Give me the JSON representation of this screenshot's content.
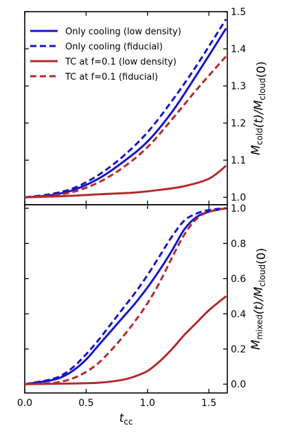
{
  "chart_data": [
    {
      "type": "line",
      "xlabel": "t_cc",
      "ylabel": "M_cold(t)/M_cloud(0)",
      "xlim": [
        0.0,
        1.65
      ],
      "ylim": [
        0.98,
        1.5
      ],
      "y_axis_side": "right",
      "x_ticks": [
        "0.0",
        "0.5",
        "1.0",
        "1.5"
      ],
      "y_ticks": [
        "1.0",
        "1.1",
        "1.2",
        "1.3",
        "1.4",
        "1.5"
      ],
      "legend": {
        "placement": "top-left"
      },
      "series": [
        {
          "name": "Only cooling (low density)",
          "color": "#1515c8",
          "dash": "solid",
          "x": [
            0.0,
            0.2,
            0.4,
            0.6,
            0.8,
            1.0,
            1.2,
            1.4,
            1.64
          ],
          "y": [
            1.0,
            1.005,
            1.02,
            1.05,
            1.095,
            1.15,
            1.23,
            1.33,
            1.455
          ]
        },
        {
          "name": "Only cooling (fiducial)",
          "color": "#1515c8",
          "dash": "dashed",
          "x": [
            0.0,
            0.2,
            0.4,
            0.6,
            0.8,
            1.0,
            1.2,
            1.4,
            1.64
          ],
          "y": [
            1.0,
            1.008,
            1.025,
            1.06,
            1.11,
            1.175,
            1.26,
            1.355,
            1.48
          ]
        },
        {
          "name": "TC at f=0.1 (low density)",
          "color": "#b52a2a",
          "dash": "solid",
          "x": [
            0.0,
            0.3,
            0.6,
            0.9,
            1.1,
            1.3,
            1.5,
            1.64
          ],
          "y": [
            1.0,
            1.003,
            1.008,
            1.013,
            1.02,
            1.03,
            1.05,
            1.085
          ]
        },
        {
          "name": "TC at f=0.1 (fiducial)",
          "color": "#b52a2a",
          "dash": "dashed",
          "x": [
            0.0,
            0.2,
            0.4,
            0.6,
            0.8,
            1.0,
            1.2,
            1.4,
            1.64
          ],
          "y": [
            1.0,
            1.004,
            1.015,
            1.04,
            1.08,
            1.135,
            1.21,
            1.29,
            1.38
          ]
        }
      ]
    },
    {
      "type": "line",
      "xlabel": "t_cc",
      "ylabel": "M_mixed(t)/M_cloud(0)",
      "xlim": [
        0.0,
        1.65
      ],
      "ylim": [
        -0.05,
        1.02
      ],
      "y_axis_side": "right",
      "x_ticks": [
        "0.0",
        "0.5",
        "1.0",
        "1.5"
      ],
      "y_ticks": [
        "0.0",
        "0.2",
        "0.4",
        "0.6",
        "0.8",
        "1.0"
      ],
      "series": [
        {
          "name": "Only cooling (low density)",
          "color": "#1515c8",
          "dash": "solid",
          "x": [
            0.0,
            0.2,
            0.3,
            0.4,
            0.5,
            0.6,
            0.7,
            0.8,
            0.9,
            1.0,
            1.1,
            1.2,
            1.3,
            1.4,
            1.5,
            1.64
          ],
          "y": [
            0.0,
            0.02,
            0.04,
            0.08,
            0.14,
            0.22,
            0.3,
            0.38,
            0.46,
            0.55,
            0.65,
            0.76,
            0.88,
            0.95,
            0.98,
            1.0
          ]
        },
        {
          "name": "Only cooling (fiducial)",
          "color": "#1515c8",
          "dash": "dashed",
          "x": [
            0.0,
            0.2,
            0.3,
            0.4,
            0.5,
            0.6,
            0.7,
            0.8,
            0.9,
            1.0,
            1.1,
            1.2,
            1.3,
            1.4,
            1.5,
            1.64
          ],
          "y": [
            0.0,
            0.025,
            0.05,
            0.1,
            0.17,
            0.25,
            0.34,
            0.43,
            0.52,
            0.62,
            0.73,
            0.84,
            0.93,
            0.97,
            0.99,
            1.0
          ]
        },
        {
          "name": "TC at f=0.1 (low density)",
          "color": "#b52a2a",
          "dash": "solid",
          "x": [
            0.0,
            0.3,
            0.6,
            0.8,
            0.9,
            1.0,
            1.1,
            1.2,
            1.3,
            1.4,
            1.5,
            1.64
          ],
          "y": [
            0.0,
            0.003,
            0.008,
            0.025,
            0.045,
            0.075,
            0.13,
            0.2,
            0.28,
            0.35,
            0.42,
            0.5
          ]
        },
        {
          "name": "TC at f=0.1 (fiducial)",
          "color": "#b52a2a",
          "dash": "dashed",
          "x": [
            0.0,
            0.2,
            0.3,
            0.4,
            0.5,
            0.6,
            0.7,
            0.8,
            0.9,
            1.0,
            1.1,
            1.2,
            1.3,
            1.4,
            1.5,
            1.64
          ],
          "y": [
            0.0,
            0.005,
            0.015,
            0.035,
            0.07,
            0.12,
            0.19,
            0.27,
            0.36,
            0.46,
            0.58,
            0.72,
            0.85,
            0.94,
            0.98,
            1.0
          ]
        }
      ]
    }
  ]
}
